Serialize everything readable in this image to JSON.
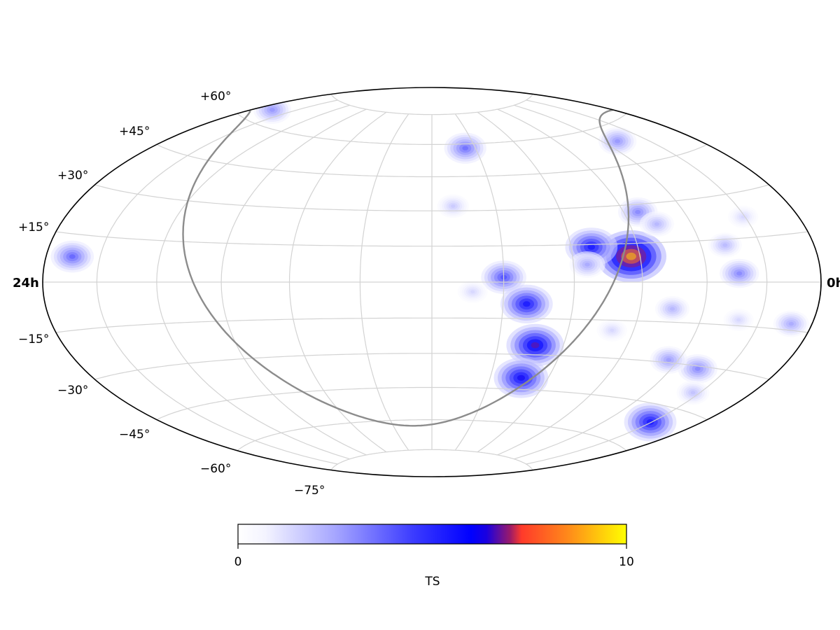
{
  "map": {
    "projection": "Hammer-Aitoff (all-sky)",
    "left_ra_label": "24h",
    "right_ra_label": "0h",
    "dec_labels": [
      "+60°",
      "+45°",
      "+30°",
      "+15°",
      "−15°",
      "−30°",
      "−45°",
      "−60°",
      "−75°"
    ],
    "graticule_color": "#d3d3d3",
    "galactic_plane_color": "#8c8c8c"
  },
  "colorbar": {
    "min_label": "0",
    "max_label": "10",
    "title": "TS",
    "colors": [
      "#ffffff",
      "#8c8cff",
      "#0000ff",
      "#ff3a2a",
      "#ffff00"
    ]
  },
  "chart_data": {
    "type": "heatmap",
    "quantity": "TS",
    "range": [
      0,
      10
    ],
    "coordinate_system": "equatorial (RA increasing to the left)",
    "hotspots": [
      {
        "ra_deg": 94,
        "dec_deg": 10,
        "ts": 9.3
      },
      {
        "ra_deg": 111,
        "dec_deg": 14,
        "ts": 5.8
      },
      {
        "ra_deg": 83,
        "dec_deg": 27,
        "ts": 3.3
      },
      {
        "ra_deg": 77,
        "dec_deg": 22,
        "ts": 2.3
      },
      {
        "ra_deg": 50,
        "dec_deg": 54,
        "ts": 3.0
      },
      {
        "ra_deg": 48,
        "dec_deg": 13,
        "ts": 2.2
      },
      {
        "ra_deg": 44,
        "dec_deg": 3,
        "ts": 3.3
      },
      {
        "ra_deg": 31,
        "dec_deg": 22,
        "ts": 1.5
      },
      {
        "ra_deg": 46,
        "dec_deg": -31,
        "ts": 3.3
      },
      {
        "ra_deg": 41,
        "dec_deg": -13,
        "ts": 1.5
      },
      {
        "ra_deg": 31,
        "dec_deg": -51,
        "ts": 5.8
      },
      {
        "ra_deg": 75,
        "dec_deg": -10,
        "ts": 2.3
      },
      {
        "ra_deg": 100,
        "dec_deg": -19,
        "ts": 1.5
      },
      {
        "ra_deg": 114,
        "dec_deg": 7,
        "ts": 2.6
      },
      {
        "ra_deg": 150,
        "dec_deg": 2,
        "ts": 4.4
      },
      {
        "ra_deg": 140,
        "dec_deg": -9,
        "ts": 5.8
      },
      {
        "ra_deg": 133,
        "dec_deg": -26,
        "ts": 6.8
      },
      {
        "ra_deg": 134,
        "dec_deg": -40,
        "ts": 6.2
      },
      {
        "ra_deg": 163,
        "dec_deg": -4,
        "ts": 1.5
      },
      {
        "ra_deg": 170,
        "dec_deg": 32,
        "ts": 1.8
      },
      {
        "ra_deg": 157,
        "dec_deg": 58,
        "ts": 3.8
      },
      {
        "ra_deg": 65,
        "dec_deg": -29,
        "ts": 2.9
      },
      {
        "ra_deg": 34,
        "dec_deg": -39,
        "ts": 2.0
      },
      {
        "ra_deg": 12,
        "dec_deg": -13,
        "ts": 2.6
      },
      {
        "ra_deg": 345,
        "dec_deg": 8,
        "ts": 4.0
      },
      {
        "ra_deg": 347,
        "dec_deg": 65,
        "ts": 3.0
      }
    ]
  }
}
